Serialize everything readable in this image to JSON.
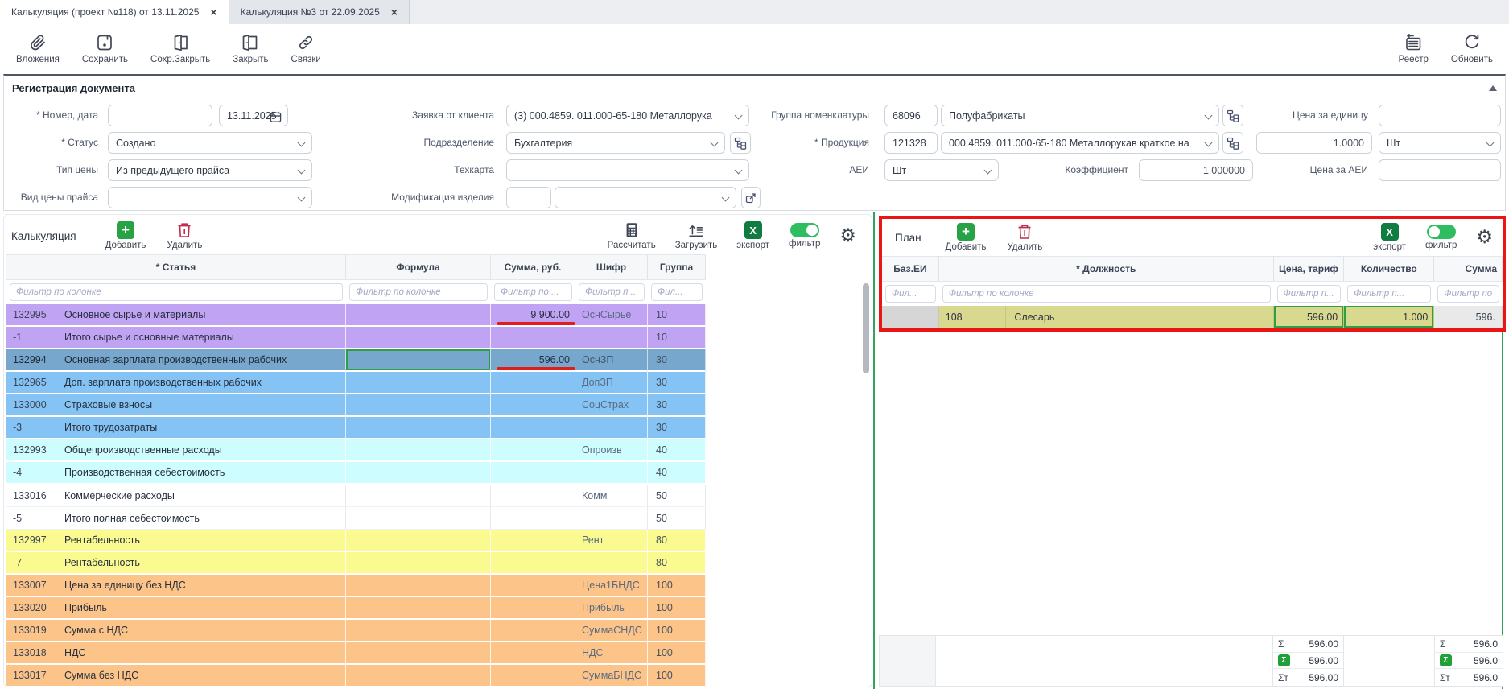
{
  "tabs": [
    {
      "label": "Калькуляция (проект №118) от 13.11.2025",
      "close": "×"
    },
    {
      "label": "Калькуляция №3 от 22.09.2025",
      "close": "×"
    }
  ],
  "toolbar": {
    "attachments": "Вложения",
    "save": "Сохранить",
    "save_close": "Сохр.Закрыть",
    "close": "Закрыть",
    "links": "Связки",
    "registry": "Реестр",
    "refresh": "Обновить"
  },
  "form": {
    "title": "Регистрация документа",
    "number_date_label": "* Номер, дата",
    "number_value": "",
    "date_value": "13.11.2025",
    "status_label": "* Статус",
    "status_value": "Создано",
    "price_type_label": "Тип цены",
    "price_type_value": "Из предыдущего прайса",
    "price_kind_label": "Вид цены прайса",
    "price_kind_value": "",
    "client_request_label": "Заявка от клиента",
    "client_request_value": "(3) 000.4859. 011.000-65-180 Металлорука",
    "department_label": "Подразделение",
    "department_value": "Бухгалтерия",
    "techcard_label": "Техкарта",
    "techcard_value": "",
    "modification_label": "Модификация изделия",
    "modification_code": "",
    "modification_value": "",
    "nomen_group_label": "Группа номенклатуры",
    "nomen_group_code": "68096",
    "nomen_group_value": "Полуфабрикаты",
    "product_label": "* Продукция",
    "product_code": "121328",
    "product_value": "000.4859. 011.000-65-180 Металлорукав краткое на",
    "qty_value": "1.0000",
    "unit_value": "Шт",
    "aei_label": "АЕИ",
    "aei_value": "Шт",
    "coef_label": "Коэффициент",
    "coef_value": "1.000000",
    "unit_price_label": "Цена за единицу",
    "unit_price_value": "",
    "aei_price_label": "Цена за АЕИ",
    "aei_price_value": ""
  },
  "calc": {
    "title": "Калькуляция",
    "add": "Добавить",
    "delete": "Удалить",
    "calculate": "Рассчитать",
    "load": "Загрузить",
    "export": "экспорт",
    "filter": "фильтр",
    "export_icon": "X",
    "headers": [
      "* Статья",
      "Формула",
      "Сумма, руб.",
      "Шифр",
      "Группа"
    ],
    "filters": [
      "Фильтр по колонке",
      "Фильтр по колонке",
      "Фильтр по ...",
      "Фильтр п...",
      "Фил..."
    ],
    "rows": [
      {
        "id": "132995",
        "article": "Основное сырье и материалы",
        "sum": "9 900.00",
        "code": "ОснСырье",
        "group": "10",
        "color": "purple",
        "marked": true
      },
      {
        "id": "-1",
        "article": "Итого сырье и основные материалы",
        "sum": "",
        "code": "",
        "group": "10",
        "color": "purple"
      },
      {
        "id": "132994",
        "article": "Основная зарплата производственных рабочих",
        "sum": "596.00",
        "code": "ОснЗП",
        "group": "30",
        "color": "selected",
        "marked": true,
        "formula_selected": true
      },
      {
        "id": "132965",
        "article": "Доп. зарплата производственных рабочих",
        "sum": "",
        "code": "ДопЗП",
        "group": "30",
        "color": "blue"
      },
      {
        "id": "133000",
        "article": "Страховые взносы",
        "sum": "",
        "code": "СоцСтрах",
        "group": "30",
        "color": "blue"
      },
      {
        "id": "-3",
        "article": "Итого трудозатраты",
        "sum": "",
        "code": "",
        "group": "30",
        "color": "blue"
      },
      {
        "id": "132993",
        "article": "Общепроизводственные расходы",
        "sum": "",
        "code": "Опроизв",
        "group": "40",
        "color": "cyan"
      },
      {
        "id": "-4",
        "article": "Производственная себестоимость",
        "sum": "",
        "code": "",
        "group": "40",
        "color": "cyan"
      },
      {
        "id": "133016",
        "article": "Коммерческие расходы",
        "sum": "",
        "code": "Комм",
        "group": "50",
        "color": "white"
      },
      {
        "id": "-5",
        "article": "Итого полная себестоимость",
        "sum": "",
        "code": "",
        "group": "50",
        "color": "white"
      },
      {
        "id": "132997",
        "article": "Рентабельность",
        "sum": "",
        "code": "Рент",
        "group": "80",
        "color": "yellow"
      },
      {
        "id": "-7",
        "article": "Рентабельность",
        "sum": "",
        "code": "",
        "group": "80",
        "color": "yellow"
      },
      {
        "id": "133007",
        "article": "Цена за единицу без НДС",
        "sum": "",
        "code": "Цена1БНДС",
        "group": "100",
        "color": "orange"
      },
      {
        "id": "133020",
        "article": "Прибыль",
        "sum": "",
        "code": "Прибыль",
        "group": "100",
        "color": "orange"
      },
      {
        "id": "133019",
        "article": "Сумма с НДС",
        "sum": "",
        "code": "СуммаСНДС",
        "group": "100",
        "color": "orange"
      },
      {
        "id": "133018",
        "article": "НДС",
        "sum": "",
        "code": "НДС",
        "group": "100",
        "color": "orange"
      },
      {
        "id": "133017",
        "article": "Сумма без НДС",
        "sum": "",
        "code": "СуммаБНДС",
        "group": "100",
        "color": "orange"
      }
    ]
  },
  "plan": {
    "title": "План",
    "add": "Добавить",
    "delete": "Удалить",
    "export": "экспорт",
    "filter": "фильтр",
    "export_icon": "X",
    "headers": [
      "Баз.ЕИ",
      "* Должность",
      "Цена, тариф",
      "Количество",
      "Сумма"
    ],
    "filters": [
      "Фил...",
      "Фильтр по колонке",
      "Фильтр п...",
      "Фильтр п...",
      "Фильтр по"
    ],
    "row": {
      "base_unit": "",
      "code": "108",
      "name": "Слесарь",
      "price": "596.00",
      "qty": "1.000",
      "sum": "596."
    },
    "totals": [
      {
        "sigma": "Σ",
        "green": false,
        "price": "596.00",
        "sum": "596.0"
      },
      {
        "sigma": "Σ",
        "green": true,
        "price": "596.00",
        "sum": "596.0"
      },
      {
        "sigma": "Σт",
        "green": false,
        "price": "596.00",
        "sum": "596.0"
      }
    ]
  },
  "colors": {
    "accent_green": "#27a346",
    "excel_green": "#107c41",
    "toggle_green": "#2fbe5f",
    "danger_red": "#c22a4e",
    "highlight_red": "#e41b1b",
    "selection_border": "#2f9e44",
    "divider_green": "#31a35c",
    "row_purple": "#c0a3f3",
    "row_selected": "#78a7cd",
    "row_blue": "#84c3f4",
    "row_cyan": "#cdfdfe",
    "row_yellow": "#fafa90",
    "row_orange": "#fcc488",
    "row_khaki": "#d8d98f"
  }
}
